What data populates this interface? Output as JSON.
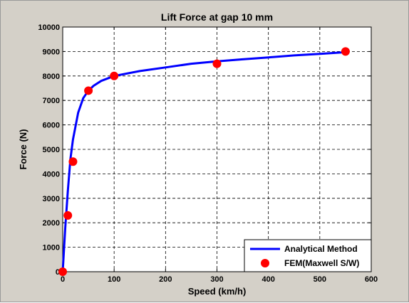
{
  "chart_data": {
    "type": "line",
    "title": "Lift Force at gap 10 mm",
    "xlabel": "Speed (km/h)",
    "ylabel": "Force (N)",
    "xlim": [
      0,
      600
    ],
    "ylim": [
      0,
      10000
    ],
    "x_ticks": [
      0,
      100,
      200,
      300,
      400,
      500,
      600
    ],
    "y_ticks": [
      0,
      1000,
      2000,
      3000,
      4000,
      5000,
      6000,
      7000,
      8000,
      9000,
      10000
    ],
    "grid": true,
    "legend_position": "bottom-right",
    "series": [
      {
        "name": "Analytical Method",
        "style": "line",
        "color": "#0000ff",
        "x": [
          0,
          2,
          5,
          10,
          15,
          20,
          30,
          40,
          50,
          60,
          75,
          100,
          150,
          200,
          250,
          300,
          350,
          400,
          450,
          500,
          550
        ],
        "y": [
          0,
          700,
          1800,
          3300,
          4600,
          5400,
          6500,
          7100,
          7400,
          7600,
          7800,
          8000,
          8200,
          8350,
          8500,
          8600,
          8680,
          8760,
          8840,
          8900,
          8970
        ]
      },
      {
        "name": "FEM(Maxwell S/W)",
        "style": "marker",
        "color": "#ff0000",
        "x": [
          0,
          10,
          20,
          50,
          100,
          300,
          550
        ],
        "y": [
          0,
          2300,
          4500,
          7400,
          8000,
          8500,
          9000
        ]
      }
    ]
  }
}
